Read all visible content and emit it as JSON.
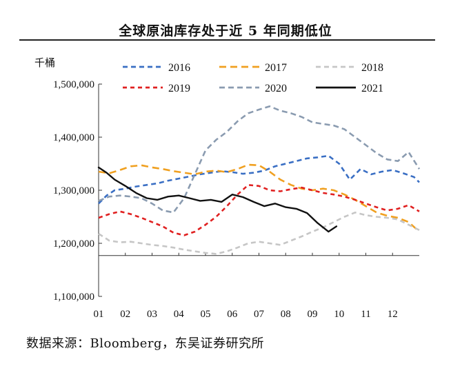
{
  "title": "全球原油库存处于近 5 年同期低位",
  "source": "数据来源：Bloomberg，东吴证券研究所",
  "chart_data": {
    "type": "line",
    "unit_label": "千桶",
    "xlabel": "",
    "ylabel": "千桶",
    "ylim": [
      1100000,
      1500000
    ],
    "y_ticks": [
      "1,500,000",
      "1,400,000",
      "1,300,000",
      "1,200,000",
      "1,100,000"
    ],
    "y_tick_values": [
      1500000,
      1400000,
      1300000,
      1200000,
      1100000
    ],
    "x_ticks": [
      "01",
      "02",
      "03",
      "04",
      "05",
      "06",
      "07",
      "08",
      "09",
      "10",
      "11",
      "12"
    ],
    "x_range": [
      1,
      13
    ],
    "grid": false,
    "legend_position": "top",
    "series": [
      {
        "name": "2016",
        "color": "#3a6fc4",
        "dash": "7,5",
        "x": [
          1,
          1.3,
          1.6,
          2,
          2.4,
          2.8,
          3.2,
          3.6,
          4,
          4.4,
          4.8,
          5.2,
          5.6,
          6,
          6.4,
          6.8,
          7.2,
          7.6,
          8,
          8.4,
          8.8,
          9.2,
          9.6,
          10,
          10.4,
          10.8,
          11.2,
          11.6,
          12,
          12.4,
          12.8,
          13
        ],
        "y": [
          1275000,
          1290000,
          1300000,
          1303000,
          1307000,
          1310000,
          1313000,
          1318000,
          1322000,
          1326000,
          1330000,
          1333000,
          1336000,
          1334000,
          1331000,
          1333000,
          1337000,
          1345000,
          1350000,
          1355000,
          1360000,
          1362000,
          1365000,
          1350000,
          1320000,
          1340000,
          1330000,
          1335000,
          1338000,
          1332000,
          1325000,
          1315000
        ]
      },
      {
        "name": "2017",
        "color": "#f0a020",
        "dash": "10,6",
        "x": [
          1,
          1.4,
          1.8,
          2.2,
          2.6,
          3,
          3.4,
          3.8,
          4.2,
          4.6,
          5,
          5.4,
          5.8,
          6.2,
          6.6,
          7,
          7.4,
          7.8,
          8.2,
          8.6,
          9,
          9.4,
          9.8,
          10.2,
          10.6,
          11,
          11.4,
          11.8,
          12.2,
          12.6,
          13
        ],
        "y": [
          1335000,
          1332000,
          1338000,
          1345000,
          1347000,
          1343000,
          1340000,
          1336000,
          1333000,
          1330000,
          1335000,
          1337000,
          1334000,
          1340000,
          1348000,
          1347000,
          1335000,
          1320000,
          1310000,
          1303000,
          1300000,
          1303000,
          1300000,
          1292000,
          1282000,
          1270000,
          1258000,
          1252000,
          1248000,
          1240000,
          1222000
        ]
      },
      {
        "name": "2018",
        "color": "#c6c6c6",
        "dash": "7,5",
        "x": [
          1,
          1.4,
          1.8,
          2.2,
          2.6,
          3,
          3.4,
          3.8,
          4.2,
          4.6,
          5,
          5.4,
          5.8,
          6.2,
          6.6,
          7,
          7.4,
          7.8,
          8.2,
          8.6,
          9,
          9.4,
          9.8,
          10.2,
          10.6,
          11,
          11.4,
          11.8,
          12.2,
          12.6,
          13
        ],
        "y": [
          1218000,
          1205000,
          1202000,
          1203000,
          1200000,
          1197000,
          1195000,
          1192000,
          1188000,
          1185000,
          1182000,
          1180000,
          1185000,
          1192000,
          1200000,
          1203000,
          1200000,
          1197000,
          1205000,
          1213000,
          1222000,
          1230000,
          1240000,
          1250000,
          1258000,
          1253000,
          1250000,
          1248000,
          1245000,
          1235000,
          1225000
        ]
      },
      {
        "name": "2019",
        "color": "#e02020",
        "dash": "6,5",
        "x": [
          1,
          1.4,
          1.8,
          2.2,
          2.6,
          3,
          3.4,
          3.8,
          4.2,
          4.6,
          5,
          5.4,
          5.8,
          6.2,
          6.6,
          7,
          7.4,
          7.8,
          8.2,
          8.6,
          9,
          9.4,
          9.8,
          10.2,
          10.6,
          11,
          11.4,
          11.8,
          12.2,
          12.6,
          13
        ],
        "y": [
          1248000,
          1255000,
          1260000,
          1255000,
          1248000,
          1240000,
          1232000,
          1220000,
          1215000,
          1222000,
          1235000,
          1250000,
          1270000,
          1292000,
          1310000,
          1308000,
          1300000,
          1298000,
          1302000,
          1305000,
          1300000,
          1295000,
          1292000,
          1288000,
          1282000,
          1275000,
          1268000,
          1262000,
          1265000,
          1272000,
          1260000
        ]
      },
      {
        "name": "2020",
        "color": "#8a9bb0",
        "dash": "8,5",
        "x": [
          1,
          1.4,
          1.8,
          2.2,
          2.6,
          3,
          3.4,
          3.8,
          4.2,
          4.6,
          5,
          5.4,
          5.8,
          6.2,
          6.6,
          7,
          7.4,
          7.8,
          8.2,
          8.6,
          9,
          9.4,
          9.8,
          10.2,
          10.6,
          11,
          11.4,
          11.8,
          12.2,
          12.6,
          13
        ],
        "y": [
          1280000,
          1288000,
          1290000,
          1288000,
          1285000,
          1275000,
          1262000,
          1258000,
          1285000,
          1330000,
          1375000,
          1395000,
          1410000,
          1430000,
          1445000,
          1452000,
          1458000,
          1450000,
          1445000,
          1438000,
          1428000,
          1425000,
          1422000,
          1415000,
          1400000,
          1385000,
          1370000,
          1358000,
          1355000,
          1372000,
          1340000
        ]
      },
      {
        "name": "2021",
        "color": "#111111",
        "dash": "",
        "x": [
          1,
          1.3,
          1.6,
          2,
          2.4,
          2.8,
          3.2,
          3.6,
          4,
          4.4,
          4.8,
          5.2,
          5.6,
          6,
          6.4,
          6.8,
          7.2,
          7.6,
          8,
          8.4,
          8.8,
          9.2,
          9.6,
          9.9
        ],
        "y": [
          1343000,
          1333000,
          1320000,
          1308000,
          1295000,
          1285000,
          1282000,
          1288000,
          1290000,
          1285000,
          1280000,
          1282000,
          1278000,
          1292000,
          1287000,
          1278000,
          1270000,
          1275000,
          1268000,
          1265000,
          1257000,
          1238000,
          1222000,
          1232000
        ]
      }
    ]
  }
}
